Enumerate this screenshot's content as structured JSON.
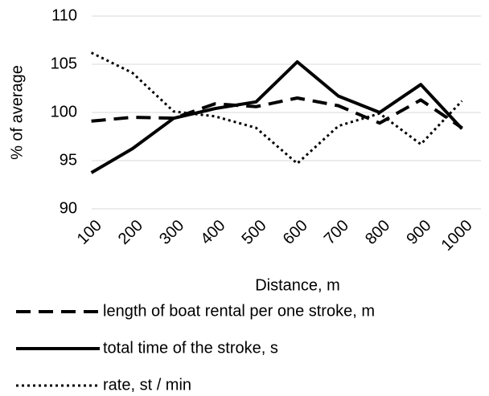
{
  "chart_data": {
    "type": "line",
    "y_label": "% of average",
    "x_label": "Distance, m",
    "categories": [
      "100",
      "200",
      "300",
      "400",
      "500",
      "600",
      "700",
      "800",
      "900",
      "1000"
    ],
    "series": [
      {
        "name": "length of boat rental per one stroke, m",
        "color": "#000000",
        "line_style": "dashed",
        "values": [
          99.1,
          99.5,
          99.4,
          100.9,
          100.6,
          101.5,
          100.7,
          98.9,
          101.3,
          98.4
        ]
      },
      {
        "name": "total time of the stroke, s",
        "color": "#000000",
        "line_style": "solid",
        "values": [
          93.75,
          96.25,
          99.4,
          100.4,
          101.1,
          105.25,
          101.7,
          100,
          102.9,
          98.3
        ]
      },
      {
        "name": "rate, st / min",
        "color": "#000000",
        "line_style": "dotted",
        "values": [
          106.2,
          104.1,
          100.1,
          99.6,
          98.4,
          94.7,
          98.6,
          99.9,
          96.7,
          101.2
        ]
      }
    ],
    "ylim": [
      90,
      110
    ],
    "yticks": [
      90,
      95,
      100,
      105,
      110
    ],
    "grid": true
  }
}
